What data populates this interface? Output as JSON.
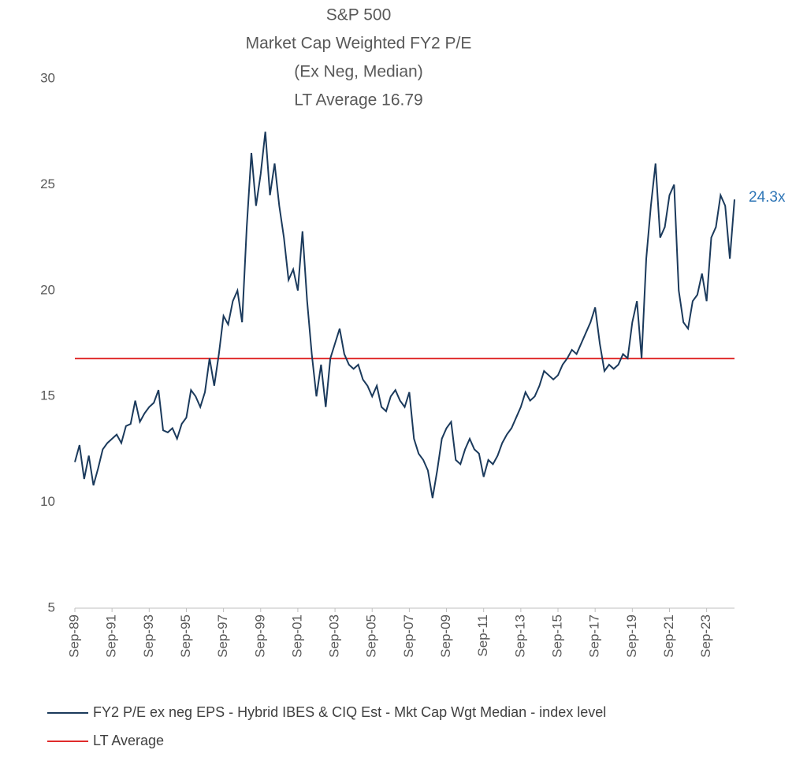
{
  "chart_data": {
    "type": "line",
    "title": [
      "S&P 500",
      "Market Cap Weighted FY2 P/E",
      "(Ex Neg, Median)",
      "LT Average 16.79"
    ],
    "categories": [
      "Sep-89",
      null,
      null,
      null,
      null,
      null,
      null,
      null,
      "Sep-91",
      null,
      null,
      null,
      null,
      null,
      null,
      null,
      "Sep-93",
      null,
      null,
      null,
      null,
      null,
      null,
      null,
      "Sep-95",
      null,
      null,
      null,
      null,
      null,
      null,
      null,
      "Sep-97",
      null,
      null,
      null,
      null,
      null,
      null,
      null,
      "Sep-99",
      null,
      null,
      null,
      null,
      null,
      null,
      null,
      "Sep-01",
      null,
      null,
      null,
      null,
      null,
      null,
      null,
      "Sep-03",
      null,
      null,
      null,
      null,
      null,
      null,
      null,
      "Sep-05",
      null,
      null,
      null,
      null,
      null,
      null,
      null,
      "Sep-07",
      null,
      null,
      null,
      null,
      null,
      null,
      null,
      "Sep-09",
      null,
      null,
      null,
      null,
      null,
      null,
      null,
      "Sep-11",
      null,
      null,
      null,
      null,
      null,
      null,
      null,
      "Sep-13",
      null,
      null,
      null,
      null,
      null,
      null,
      null,
      "Sep-15",
      null,
      null,
      null,
      null,
      null,
      null,
      null,
      "Sep-17",
      null,
      null,
      null,
      null,
      null,
      null,
      null,
      "Sep-19",
      null,
      null,
      null,
      null,
      null,
      null,
      null,
      "Sep-21",
      null,
      null,
      null,
      null,
      null,
      null,
      null,
      "Sep-23",
      null,
      null,
      null,
      null,
      null,
      null
    ],
    "series": [
      {
        "name": "FY2 P/E ex neg EPS - Hybrid IBES & CIQ Est - Mkt Cap Wgt Median - index level",
        "color": "#1b3a5c",
        "values": [
          11.9,
          12.7,
          11.1,
          12.2,
          10.8,
          11.6,
          12.5,
          12.8,
          13.0,
          13.2,
          12.8,
          13.6,
          13.7,
          14.8,
          13.8,
          14.2,
          14.5,
          14.7,
          15.3,
          13.4,
          13.3,
          13.5,
          13.0,
          13.7,
          14.0,
          15.3,
          15.0,
          14.5,
          15.2,
          16.8,
          15.5,
          17.0,
          18.8,
          18.4,
          19.5,
          20.0,
          18.5,
          23.0,
          26.5,
          24.0,
          25.5,
          27.5,
          24.5,
          26.0,
          24.0,
          22.5,
          20.5,
          21.0,
          20.0,
          22.8,
          19.5,
          17.0,
          15.0,
          16.5,
          14.5,
          16.8,
          17.5,
          18.2,
          17.0,
          16.5,
          16.3,
          16.5,
          15.8,
          15.5,
          15.0,
          15.5,
          14.5,
          14.3,
          15.0,
          15.3,
          14.8,
          14.5,
          15.2,
          13.0,
          12.3,
          12.0,
          11.5,
          10.2,
          11.5,
          13.0,
          13.5,
          13.8,
          12.0,
          11.8,
          12.5,
          13.0,
          12.5,
          12.3,
          11.2,
          12.0,
          11.8,
          12.2,
          12.8,
          13.2,
          13.5,
          14.0,
          14.5,
          15.2,
          14.8,
          15.0,
          15.5,
          16.2,
          16.0,
          15.8,
          16.0,
          16.5,
          16.8,
          17.2,
          17.0,
          17.5,
          18.0,
          18.5,
          19.2,
          17.5,
          16.2,
          16.5,
          16.3,
          16.5,
          17.0,
          16.8,
          18.5,
          19.5,
          16.8,
          21.5,
          24.0,
          26.0,
          22.5,
          23.0,
          24.5,
          25.0,
          20.0,
          18.5,
          18.2,
          19.5,
          19.8,
          20.8,
          19.5,
          22.5,
          23.0,
          24.5,
          24.0,
          21.5,
          24.3
        ],
        "value_labels": [
          null,
          null,
          null,
          null,
          null,
          null,
          null,
          null,
          null,
          null,
          null,
          null,
          null,
          null,
          null,
          null,
          null,
          null,
          null,
          null,
          null,
          null,
          null,
          null,
          null,
          null,
          null,
          null,
          null,
          null,
          null,
          null,
          null,
          null,
          null,
          null,
          null,
          null,
          null,
          null,
          null,
          null,
          null,
          null,
          null,
          null,
          null,
          null,
          null,
          null,
          null,
          null,
          null,
          null,
          null,
          null,
          null,
          null,
          null,
          null,
          null,
          null,
          null,
          null,
          null,
          null,
          null,
          null,
          null,
          null,
          null,
          null,
          null,
          null,
          null,
          null,
          null,
          null,
          null,
          null,
          null,
          null,
          null,
          null,
          null,
          null,
          null,
          null,
          null,
          null,
          null,
          null,
          null,
          null,
          null,
          null,
          null,
          null,
          null,
          null,
          null,
          null,
          null,
          null,
          null,
          null,
          null,
          null,
          null,
          null,
          null,
          null,
          null,
          null,
          null,
          null,
          null,
          null,
          null,
          null,
          null,
          null,
          null,
          null,
          null,
          null,
          null,
          null,
          null,
          null,
          null,
          null,
          null,
          null,
          null,
          null,
          null,
          null,
          null,
          null,
          null,
          null,
          "24.3x"
        ],
        "value_label_color": "#2e75b6"
      }
    ],
    "reference_line": {
      "name": "LT Average",
      "value": 16.79,
      "color": "#e02b2b"
    },
    "ylim": [
      5,
      30
    ],
    "yticks": [
      5,
      10,
      15,
      20,
      25,
      30
    ],
    "grid": false
  }
}
